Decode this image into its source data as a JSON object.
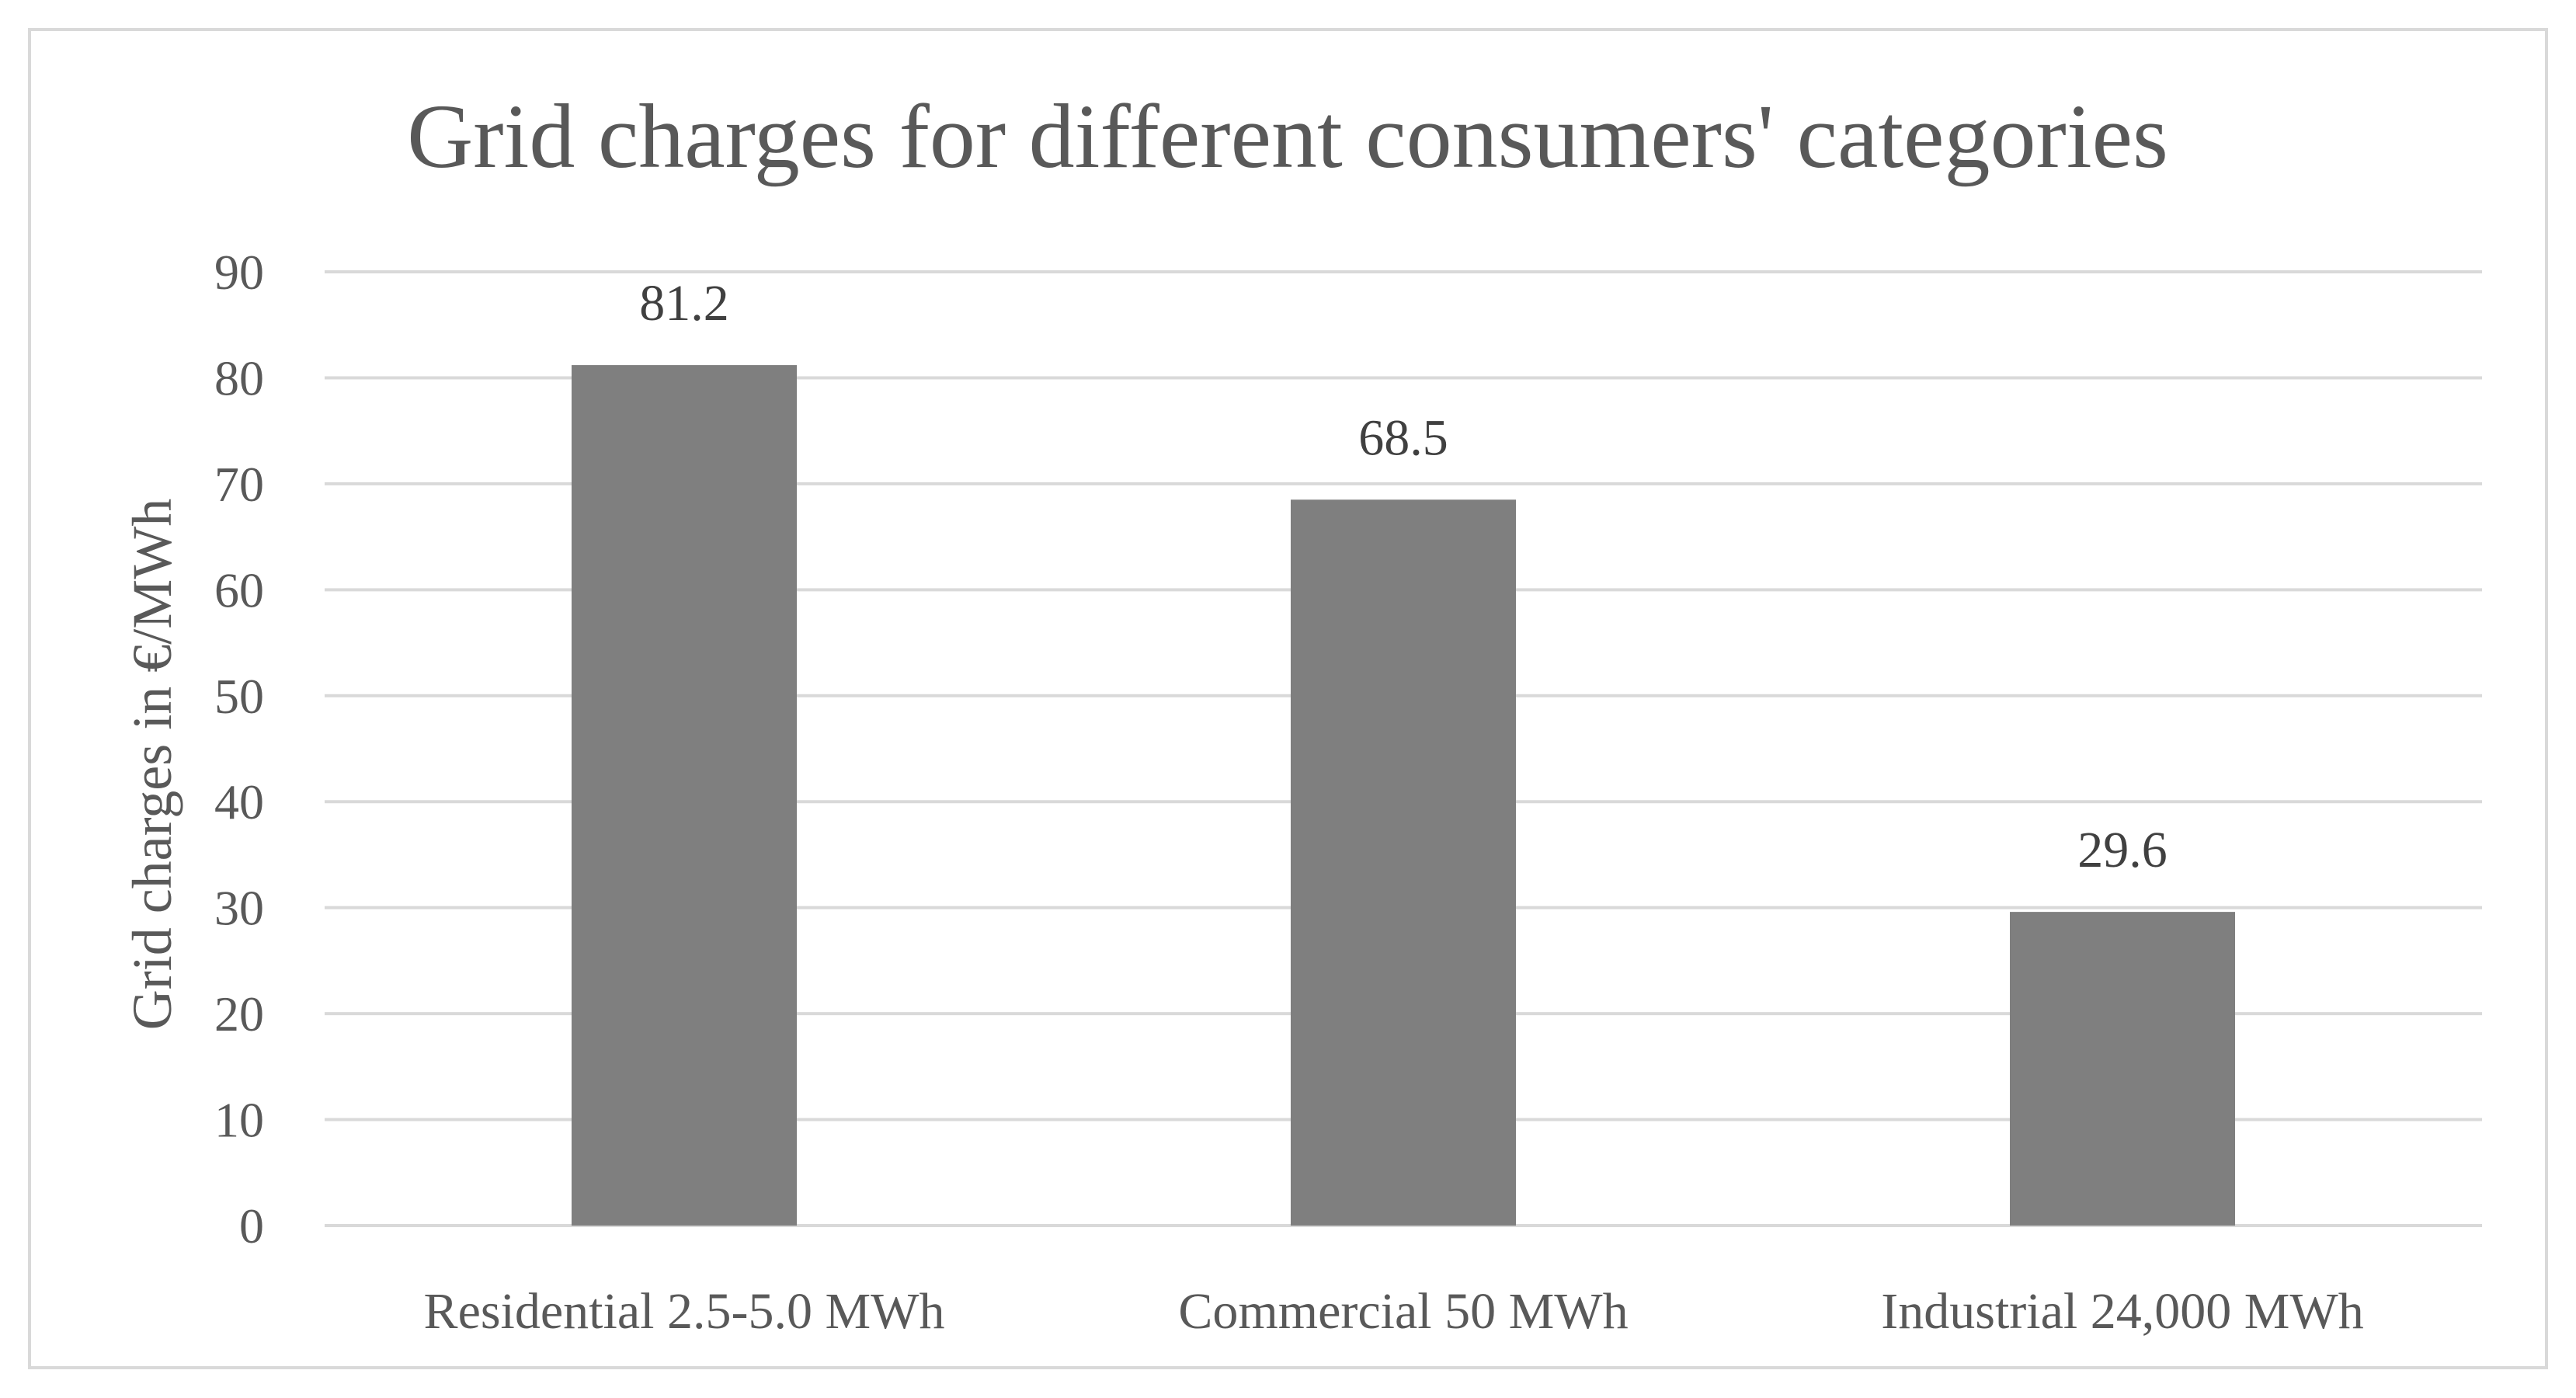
{
  "chart_data": {
    "type": "bar",
    "title": "Grid charges for different consumers' categories",
    "xlabel": "",
    "ylabel": "Grid charges in €/MWh",
    "categories": [
      "Residential 2.5-5.0 MWh",
      "Commercial 50 MWh",
      "Industrial 24,000 MWh"
    ],
    "values": [
      81.2,
      68.5,
      29.6
    ],
    "data_labels": [
      "81.2",
      "68.5",
      "29.6"
    ],
    "ylim": [
      0,
      90
    ],
    "yticks": [
      0,
      10,
      20,
      30,
      40,
      50,
      60,
      70,
      80,
      90
    ],
    "grid": true,
    "legend": "none",
    "colors": {
      "bar": "#7f7f7f",
      "grid": "#d9d9d9",
      "text": "#595959",
      "frame": "#d9d9d9"
    }
  }
}
